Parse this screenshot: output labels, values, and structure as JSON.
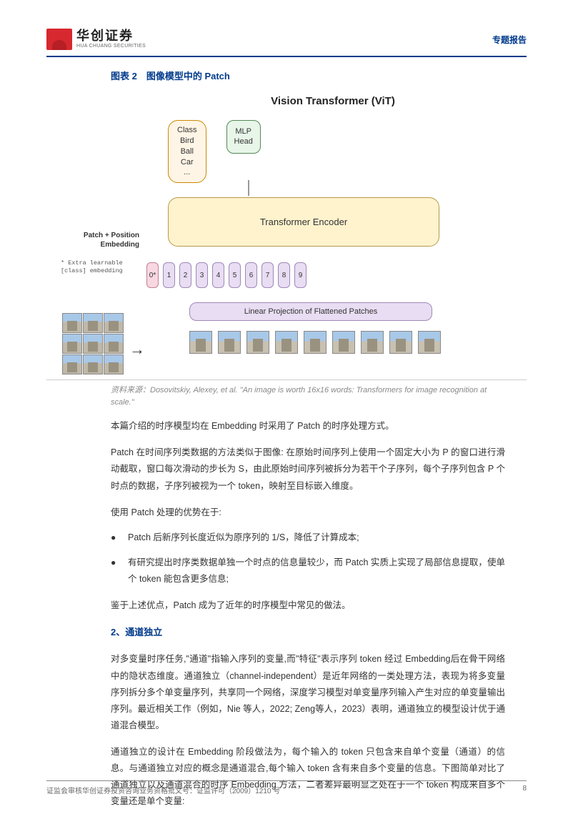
{
  "header": {
    "logo_cn": "华创证券",
    "logo_en": "HUA CHUANG SECURITIES",
    "right_label": "专题报告"
  },
  "figure": {
    "caption": "图表 2　图像模型中的 Patch",
    "title": "Vision Transformer (ViT)",
    "class_box": "Class\nBird\nBall\nCar\n...",
    "mlp_box": "MLP\nHead",
    "encoder": "Transformer Encoder",
    "patch_pos_label": "Patch + Position\nEmbedding",
    "extra_label": "* Extra learnable\n[class] embedding",
    "lin_proj": "Linear Projection of Flattened Patches",
    "embed_tokens": [
      "0*",
      "1",
      "2",
      "3",
      "4",
      "5",
      "6",
      "7",
      "8",
      "9"
    ],
    "embed_colors": {
      "class_token_bg": "#f8d7e3",
      "class_token_border": "#c08090",
      "pos_token_bg": "#e8ddf2",
      "pos_token_border": "#a088b8"
    },
    "num_patches": 9,
    "source": "资料来源：Dosovitskiy, Alexey, et al. \"An image is worth 16x16 words: Transformers for image recognition at scale.\""
  },
  "body": {
    "p1": "本篇介绍的时序模型均在 Embedding 时采用了 Patch 的时序处理方式。",
    "p2": "Patch 在时间序列类数据的方法类似于图像: 在原始时间序列上使用一个固定大小为 P 的窗口进行滑动截取，窗口每次滑动的步长为 S，由此原始时间序列被拆分为若干个子序列，每个子序列包含 P 个时点的数据，子序列被视为一个 token，映射至目标嵌入维度。",
    "p3": "使用 Patch 处理的优势在于:",
    "b1": "Patch 后新序列长度近似为原序列的 1/S，降低了计算成本;",
    "b2": "有研究提出时序类数据单独一个时点的信息量较少，而 Patch 实质上实现了局部信息提取，使单个 token 能包含更多信息;",
    "p4": "鉴于上述优点，Patch 成为了近年的时序模型中常见的做法。",
    "h2": "2、通道独立",
    "p5": "对多变量时序任务,\"通道\"指输入序列的变量,而\"特征\"表示序列 token 经过 Embedding后在骨干网络中的隐状态维度。通道独立（channel-independent）是近年网络的一类处理方法，表现为将多变量序列拆分多个单变量序列，共享同一个网络，深度学习模型对单变量序列输入产生对应的单变量输出序列。最近相关工作（例如，Nie 等人，2022; Zeng等人，2023）表明，通道独立的模型设计优于通道混合模型。",
    "p6": "通道独立的设计在 Embedding 阶段做法为，每个输入的 token 只包含来自单个变量（通道）的信息。与通道独立对应的概念是通道混合,每个输入 token 含有来自多个变量的信息。下图简单对比了通道独立以及通道混合的时序 Embedding 方法，二者差异最明显之处在于一个 token 构成来自多个变量还是单个变量:"
  },
  "footer": {
    "left": "证监会审核华创证券投资咨询业务资格批文号：证监许可（2009）1210 号",
    "page": "8"
  },
  "colors": {
    "accent": "#003a8c",
    "logo_red": "#d7282f",
    "encoder_bg": "#fff3cd",
    "mlp_bg": "#e8f5e9",
    "class_bg": "#fff5e6"
  }
}
